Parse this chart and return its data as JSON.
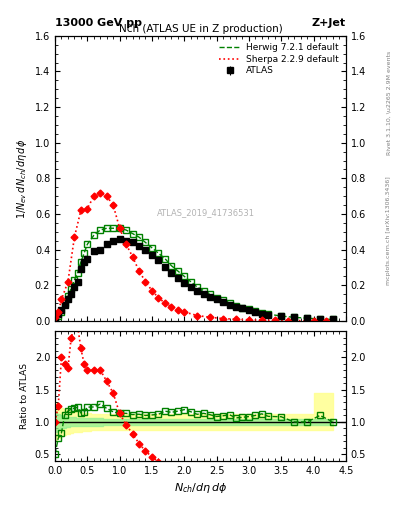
{
  "title_top": "13000 GeV pp",
  "title_right": "Z+Jet",
  "plot_title": "Nch (ATLAS UE in Z production)",
  "xlabel": "N_{ch}/d\\eta\\,d\\phi",
  "ylabel_main": "1/N_{ev} dN_{ch}/d\\eta\\,d\\phi",
  "ylabel_ratio": "Ratio to ATLAS",
  "right_label_top": "Rivet 3.1.10, \\u2265 2.9M events",
  "right_label_bottom": "mcplots.cern.ch [arXiv:1306.3436]",
  "watermark": "ATLAS_2019_41736531",
  "atlas_x": [
    0.0,
    0.05,
    0.1,
    0.15,
    0.2,
    0.25,
    0.3,
    0.35,
    0.4,
    0.45,
    0.5,
    0.6,
    0.7,
    0.8,
    0.9,
    1.0,
    1.1,
    1.2,
    1.3,
    1.4,
    1.5,
    1.6,
    1.7,
    1.8,
    1.9,
    2.0,
    2.1,
    2.2,
    2.3,
    2.4,
    2.5,
    2.6,
    2.7,
    2.8,
    2.9,
    3.0,
    3.1,
    3.2,
    3.3,
    3.5,
    3.7,
    3.9,
    4.1,
    4.3
  ],
  "atlas_y": [
    0.02,
    0.04,
    0.06,
    0.09,
    0.12,
    0.15,
    0.19,
    0.22,
    0.29,
    0.33,
    0.35,
    0.39,
    0.4,
    0.43,
    0.45,
    0.46,
    0.45,
    0.44,
    0.42,
    0.4,
    0.37,
    0.34,
    0.3,
    0.27,
    0.24,
    0.21,
    0.19,
    0.17,
    0.15,
    0.135,
    0.12,
    0.105,
    0.09,
    0.08,
    0.07,
    0.06,
    0.05,
    0.04,
    0.035,
    0.025,
    0.02,
    0.015,
    0.01,
    0.008
  ],
  "atlas_yerr": [
    0.003,
    0.004,
    0.005,
    0.006,
    0.007,
    0.008,
    0.009,
    0.01,
    0.01,
    0.01,
    0.012,
    0.012,
    0.012,
    0.012,
    0.013,
    0.013,
    0.013,
    0.013,
    0.013,
    0.013,
    0.012,
    0.012,
    0.011,
    0.01,
    0.01,
    0.009,
    0.009,
    0.008,
    0.008,
    0.007,
    0.007,
    0.006,
    0.006,
    0.005,
    0.005,
    0.005,
    0.004,
    0.004,
    0.003,
    0.003,
    0.003,
    0.002,
    0.002,
    0.002
  ],
  "herwig_x": [
    0.0,
    0.05,
    0.1,
    0.15,
    0.2,
    0.25,
    0.3,
    0.35,
    0.4,
    0.45,
    0.5,
    0.6,
    0.7,
    0.8,
    0.9,
    1.0,
    1.1,
    1.2,
    1.3,
    1.4,
    1.5,
    1.6,
    1.7,
    1.8,
    1.9,
    2.0,
    2.1,
    2.2,
    2.3,
    2.4,
    2.5,
    2.6,
    2.7,
    2.8,
    2.9,
    3.0,
    3.1,
    3.2,
    3.3,
    3.5,
    3.7,
    3.9,
    4.1,
    4.3
  ],
  "herwig_y": [
    0.01,
    0.03,
    0.05,
    0.1,
    0.14,
    0.18,
    0.23,
    0.27,
    0.33,
    0.38,
    0.43,
    0.48,
    0.51,
    0.52,
    0.52,
    0.52,
    0.51,
    0.49,
    0.47,
    0.44,
    0.41,
    0.38,
    0.35,
    0.31,
    0.28,
    0.25,
    0.22,
    0.19,
    0.17,
    0.15,
    0.13,
    0.115,
    0.1,
    0.085,
    0.075,
    0.065,
    0.055,
    0.045,
    0.038,
    0.027,
    0.02,
    0.015,
    0.011,
    0.008
  ],
  "sherpa_x": [
    0.0,
    0.05,
    0.1,
    0.2,
    0.3,
    0.4,
    0.5,
    0.6,
    0.7,
    0.8,
    0.9,
    1.0,
    1.1,
    1.2,
    1.3,
    1.4,
    1.5,
    1.6,
    1.7,
    1.8,
    1.9,
    2.0,
    2.2,
    2.4,
    2.6,
    2.8,
    3.0,
    3.2,
    3.4,
    3.6,
    4.0,
    4.2
  ],
  "sherpa_y": [
    0.02,
    0.05,
    0.12,
    0.22,
    0.47,
    0.62,
    0.63,
    0.7,
    0.72,
    0.7,
    0.65,
    0.52,
    0.43,
    0.36,
    0.28,
    0.22,
    0.17,
    0.13,
    0.1,
    0.08,
    0.06,
    0.05,
    0.03,
    0.02,
    0.013,
    0.009,
    0.006,
    0.004,
    0.003,
    0.002,
    0.001,
    0.001
  ],
  "sherpa_yerr": [
    0.003,
    0.005,
    0.007,
    0.01,
    0.012,
    0.014,
    0.015,
    0.016,
    0.016,
    0.016,
    0.015,
    0.014,
    0.013,
    0.012,
    0.011,
    0.01,
    0.009,
    0.008,
    0.007,
    0.006,
    0.005,
    0.005,
    0.004,
    0.003,
    0.003,
    0.002,
    0.002,
    0.001,
    0.001,
    0.001,
    0.001,
    0.001
  ],
  "band_x": [
    0.0,
    0.05,
    0.1,
    0.15,
    0.2,
    0.25,
    0.3,
    0.35,
    0.4,
    0.45,
    0.5,
    0.6,
    0.7,
    0.8,
    0.9,
    1.0,
    1.1,
    1.2,
    1.3,
    1.4,
    1.5,
    1.6,
    1.7,
    1.8,
    1.9,
    2.0,
    2.1,
    2.2,
    2.3,
    2.4,
    2.5,
    2.6,
    2.7,
    2.8,
    2.9,
    3.0,
    3.1,
    3.2,
    3.3,
    3.5,
    3.7,
    3.9,
    4.1,
    4.3
  ],
  "band_green_lo": [
    0.85,
    0.88,
    0.9,
    0.91,
    0.92,
    0.93,
    0.93,
    0.94,
    0.94,
    0.94,
    0.94,
    0.94,
    0.94,
    0.95,
    0.95,
    0.95,
    0.95,
    0.95,
    0.95,
    0.95,
    0.95,
    0.95,
    0.95,
    0.95,
    0.95,
    0.95,
    0.95,
    0.95,
    0.95,
    0.95,
    0.95,
    0.95,
    0.95,
    0.95,
    0.95,
    0.95,
    0.95,
    0.95,
    0.95,
    0.95,
    0.95,
    0.95,
    0.95,
    0.95
  ],
  "band_green_hi": [
    1.15,
    1.12,
    1.1,
    1.09,
    1.08,
    1.07,
    1.07,
    1.06,
    1.06,
    1.06,
    1.06,
    1.06,
    1.06,
    1.05,
    1.05,
    1.05,
    1.05,
    1.05,
    1.05,
    1.05,
    1.05,
    1.05,
    1.05,
    1.05,
    1.05,
    1.05,
    1.05,
    1.05,
    1.05,
    1.05,
    1.05,
    1.05,
    1.05,
    1.05,
    1.05,
    1.05,
    1.05,
    1.05,
    1.05,
    1.05,
    1.05,
    1.05,
    1.05,
    1.05
  ],
  "band_yellow_lo": [
    0.7,
    0.75,
    0.78,
    0.8,
    0.82,
    0.83,
    0.84,
    0.85,
    0.85,
    0.86,
    0.86,
    0.87,
    0.87,
    0.88,
    0.88,
    0.88,
    0.88,
    0.88,
    0.88,
    0.88,
    0.88,
    0.88,
    0.88,
    0.88,
    0.88,
    0.88,
    0.88,
    0.88,
    0.88,
    0.88,
    0.88,
    0.88,
    0.88,
    0.88,
    0.88,
    0.88,
    0.88,
    0.88,
    0.88,
    0.88,
    0.88,
    0.88,
    0.88,
    0.88
  ],
  "band_yellow_hi": [
    1.3,
    1.25,
    1.22,
    1.2,
    1.18,
    1.17,
    1.16,
    1.15,
    1.15,
    1.14,
    1.14,
    1.13,
    1.13,
    1.12,
    1.12,
    1.12,
    1.12,
    1.12,
    1.12,
    1.12,
    1.12,
    1.12,
    1.12,
    1.12,
    1.12,
    1.12,
    1.12,
    1.12,
    1.12,
    1.12,
    1.12,
    1.12,
    1.12,
    1.12,
    1.12,
    1.12,
    1.12,
    1.12,
    1.12,
    1.12,
    1.12,
    1.12,
    1.45,
    1.45
  ],
  "ylim_main": [
    0,
    1.6
  ],
  "ylim_ratio": [
    0.4,
    2.4
  ],
  "xlim": [
    0,
    4.5
  ],
  "color_atlas": "#000000",
  "color_herwig": "#008000",
  "color_sherpa": "#ff0000",
  "color_band_green": "#90ee90",
  "color_band_yellow": "#ffff90",
  "legend_labels": [
    "ATLAS",
    "Herwig 7.2.1 default",
    "Sherpa 2.2.9 default"
  ]
}
